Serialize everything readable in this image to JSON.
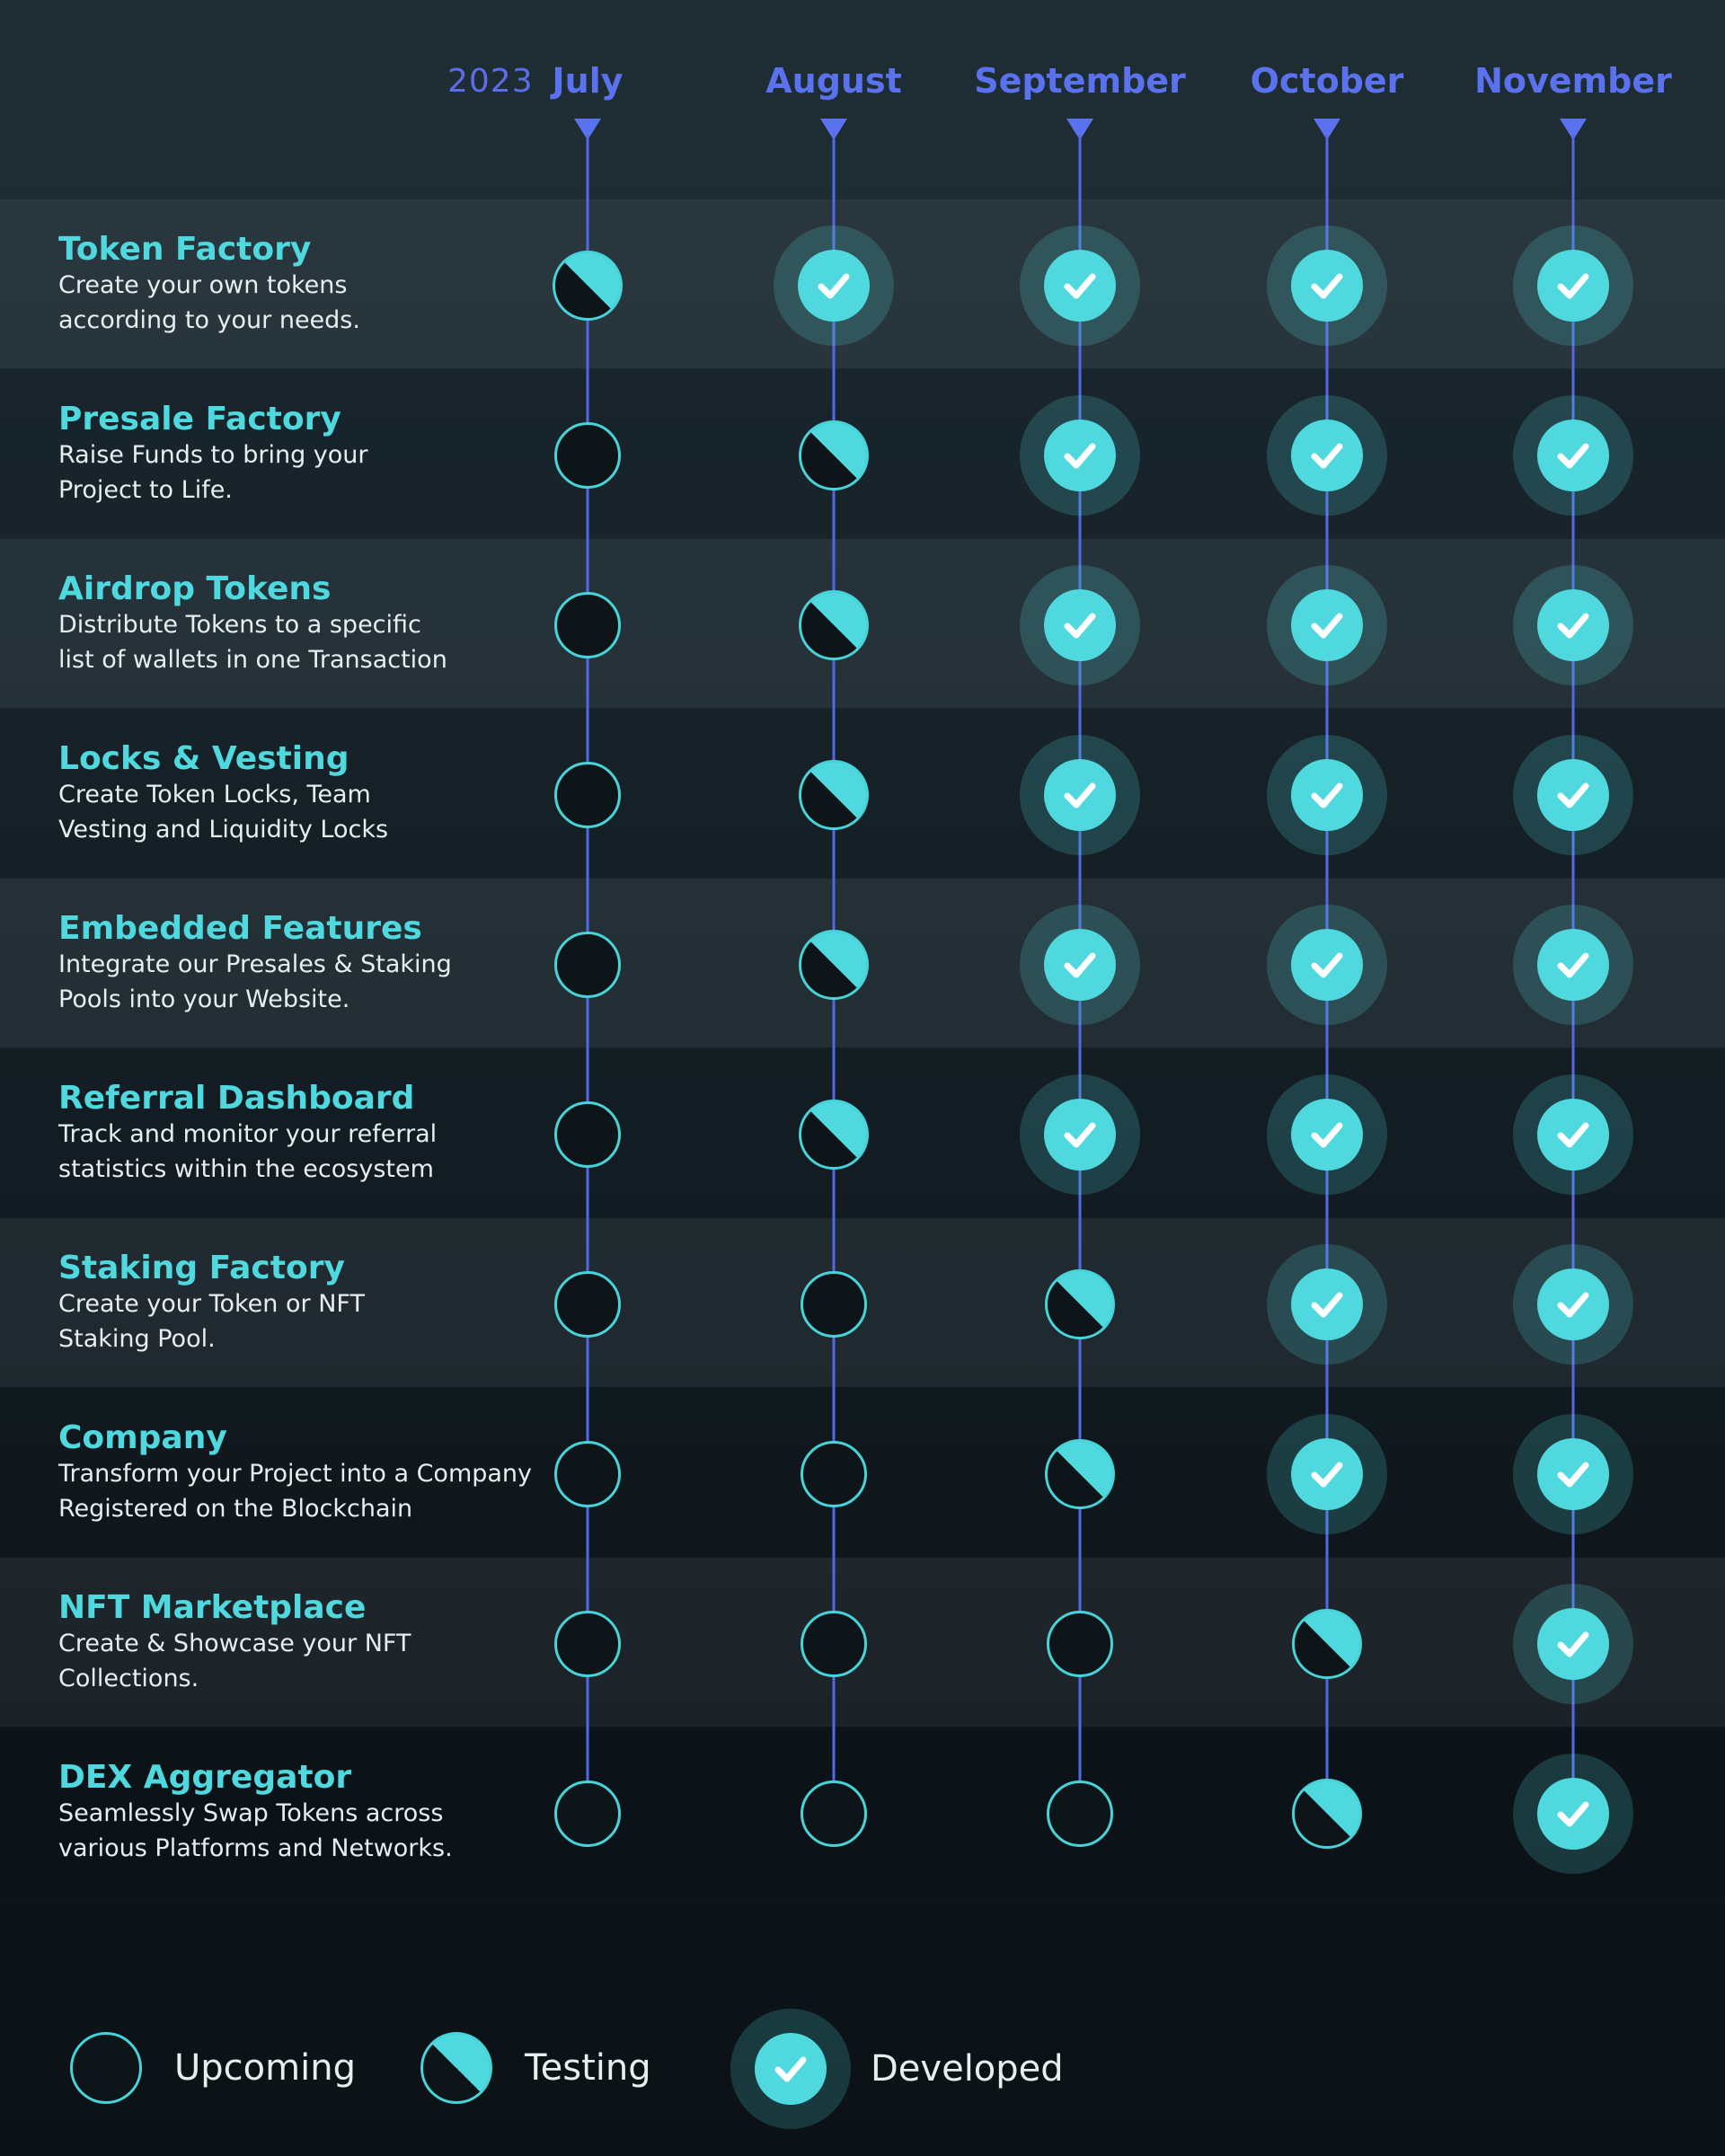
{
  "header": {
    "year": "2023",
    "months": [
      "July",
      "August",
      "September",
      "October",
      "November"
    ]
  },
  "features": [
    {
      "title": "Token Factory",
      "desc1": "Create your own tokens",
      "desc2": "according to your needs.",
      "status": [
        "testing",
        "developed",
        "developed",
        "developed",
        "developed"
      ]
    },
    {
      "title": "Presale Factory",
      "desc1": "Raise Funds to bring your",
      "desc2": "Project to Life.",
      "status": [
        "upcoming",
        "testing",
        "developed",
        "developed",
        "developed"
      ]
    },
    {
      "title": "Airdrop Tokens",
      "desc1": "Distribute Tokens to a specific",
      "desc2": "list of wallets in one Transaction",
      "status": [
        "upcoming",
        "testing",
        "developed",
        "developed",
        "developed"
      ]
    },
    {
      "title": "Locks & Vesting",
      "desc1": "Create Token Locks, Team",
      "desc2": "Vesting and Liquidity Locks",
      "status": [
        "upcoming",
        "testing",
        "developed",
        "developed",
        "developed"
      ]
    },
    {
      "title": "Embedded Features",
      "desc1": "Integrate our Presales & Staking",
      "desc2": "Pools into your Website.",
      "status": [
        "upcoming",
        "testing",
        "developed",
        "developed",
        "developed"
      ]
    },
    {
      "title": "Referral Dashboard",
      "desc1": "Track and monitor your referral",
      "desc2": "statistics within the ecosystem",
      "status": [
        "upcoming",
        "testing",
        "developed",
        "developed",
        "developed"
      ]
    },
    {
      "title": "Staking Factory",
      "desc1": "Create your Token or NFT",
      "desc2": "Staking Pool.",
      "status": [
        "upcoming",
        "upcoming",
        "testing",
        "developed",
        "developed"
      ]
    },
    {
      "title": "Company",
      "desc1": "Transform your Project into a Company",
      "desc2": "Registered on the Blockchain",
      "status": [
        "upcoming",
        "upcoming",
        "testing",
        "developed",
        "developed"
      ]
    },
    {
      "title": "NFT Marketplace",
      "desc1": "Create & Showcase your NFT",
      "desc2": "Collections.",
      "status": [
        "upcoming",
        "upcoming",
        "upcoming",
        "testing",
        "developed"
      ]
    },
    {
      "title": "DEX Aggregator",
      "desc1": "Seamlessly Swap Tokens across",
      "desc2": "various Platforms and Networks.",
      "status": [
        "upcoming",
        "upcoming",
        "upcoming",
        "testing",
        "developed"
      ]
    }
  ],
  "legend": {
    "upcoming": "Upcoming",
    "testing": "Testing",
    "developed": "Developed"
  },
  "colors": {
    "accent_cyan": "#4fd8dd",
    "timeline_blue": "#5468e3",
    "month_blue": "#5b72ee"
  }
}
